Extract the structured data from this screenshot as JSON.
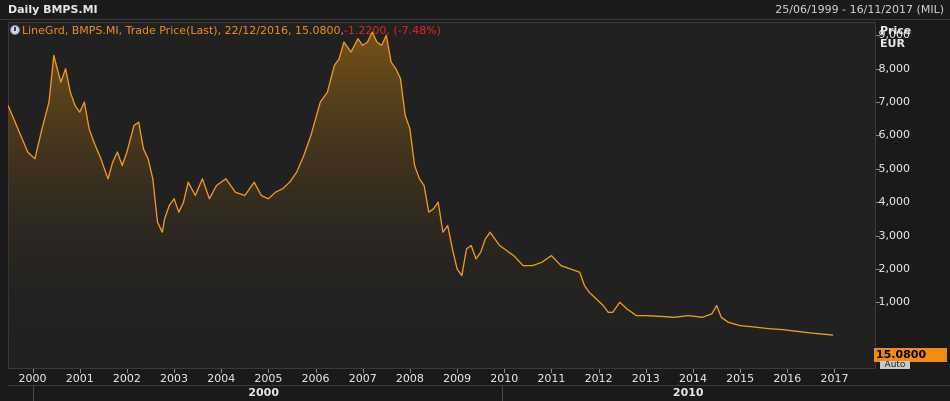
{
  "window": {
    "title": "Daily BMPS.MI",
    "date_range": "25/06/1999 - 16/11/2017 (MIL)"
  },
  "legend": {
    "main_text": "LineGrd, BMPS.MI, Trade Price(Last), 22/12/2016, 15.0800,",
    "change_text": " -1.2200, (-7.48%)"
  },
  "last_price_label": "15.0800",
  "auto_label": "Auto",
  "colors": {
    "line": "#f39a1e",
    "area_top": "#7a5418",
    "last_box": "#f28c0f",
    "negative": "#e0261c"
  },
  "chart_data": {
    "type": "area",
    "yaxis_title": [
      "Price",
      "EUR"
    ],
    "ylim": [
      -1000,
      9400
    ],
    "yticks": [
      1000,
      2000,
      3000,
      4000,
      5000,
      6000,
      7000,
      8000,
      9000
    ],
    "ytick_labels": [
      "1,000",
      "2,000",
      "3,000",
      "4,000",
      "5,000",
      "6,000",
      "7,000",
      "8,000",
      "9,000"
    ],
    "xlim": [
      1999.48,
      2017.88
    ],
    "xticks": [
      2000,
      2001,
      2002,
      2003,
      2004,
      2005,
      2006,
      2007,
      2008,
      2009,
      2010,
      2011,
      2012,
      2013,
      2014,
      2015,
      2016,
      2017
    ],
    "decade_labels": [
      {
        "label": "2000",
        "x": 2004.9
      },
      {
        "label": "2010",
        "x": 2013.9
      }
    ],
    "decade_split": 2009.95,
    "grid": false,
    "series": [
      {
        "x": [
          1999.48,
          1999.6,
          1999.75,
          1999.9,
          2000.05,
          2000.2,
          2000.35,
          2000.45,
          2000.6,
          2000.7,
          2000.8,
          2000.9,
          2001.0,
          2001.1,
          2001.2,
          2001.3,
          2001.45,
          2001.6,
          2001.7,
          2001.8,
          2001.9,
          2002.0,
          2002.15,
          2002.25,
          2002.35,
          2002.45,
          2002.55,
          2002.65,
          2002.75,
          2002.8,
          2002.9,
          2003.0,
          2003.1,
          2003.2,
          2003.3,
          2003.45,
          2003.6,
          2003.75,
          2003.9,
          2004.1,
          2004.3,
          2004.5,
          2004.7,
          2004.85,
          2005.0,
          2005.15,
          2005.3,
          2005.45,
          2005.6,
          2005.75,
          2005.9,
          2006.0,
          2006.1,
          2006.25,
          2006.4,
          2006.5,
          2006.6,
          2006.75,
          2006.9,
          2007.0,
          2007.1,
          2007.2,
          2007.3,
          2007.4,
          2007.5,
          2007.6,
          2007.7,
          2007.8,
          2007.9,
          2008.0,
          2008.1,
          2008.2,
          2008.3,
          2008.4,
          2008.5,
          2008.6,
          2008.7,
          2008.8,
          2008.9,
          2009.0,
          2009.1,
          2009.2,
          2009.3,
          2009.4,
          2009.5,
          2009.6,
          2009.7,
          2009.8,
          2009.9,
          2010.0,
          2010.2,
          2010.4,
          2010.6,
          2010.8,
          2011.0,
          2011.2,
          2011.4,
          2011.6,
          2011.7,
          2011.8,
          2011.95,
          2012.1,
          2012.2,
          2012.3,
          2012.45,
          2012.6,
          2012.8,
          2013.0,
          2013.3,
          2013.6,
          2013.9,
          2014.2,
          2014.4,
          2014.5,
          2014.6,
          2014.75,
          2015.0,
          2015.3,
          2015.6,
          2015.9,
          2016.2,
          2016.5,
          2016.8,
          2016.97
        ],
        "y": [
          6900,
          6500,
          6000,
          5500,
          5300,
          6200,
          7000,
          8400,
          7600,
          8000,
          7300,
          6900,
          6700,
          7000,
          6200,
          5800,
          5300,
          4700,
          5200,
          5500,
          5100,
          5500,
          6300,
          6400,
          5600,
          5300,
          4700,
          3400,
          3100,
          3500,
          3900,
          4100,
          3700,
          4000,
          4600,
          4200,
          4700,
          4100,
          4500,
          4700,
          4300,
          4200,
          4600,
          4200,
          4100,
          4300,
          4400,
          4600,
          4900,
          5400,
          6000,
          6500,
          7000,
          7300,
          8100,
          8300,
          8800,
          8500,
          8900,
          8700,
          8800,
          9100,
          8800,
          8700,
          9000,
          8200,
          8000,
          7700,
          6600,
          6200,
          5100,
          4700,
          4500,
          3700,
          3800,
          4000,
          3100,
          3300,
          2600,
          2000,
          1800,
          2600,
          2700,
          2300,
          2500,
          2900,
          3100,
          2900,
          2700,
          2600,
          2400,
          2100,
          2100,
          2200,
          2400,
          2100,
          2000,
          1900,
          1500,
          1300,
          1100,
          900,
          700,
          700,
          1000,
          800,
          600,
          600,
          580,
          550,
          600,
          550,
          650,
          900,
          550,
          400,
          300,
          260,
          210,
          180,
          130,
          80,
          40,
          15.08
        ]
      }
    ],
    "last_value": 15.08
  }
}
